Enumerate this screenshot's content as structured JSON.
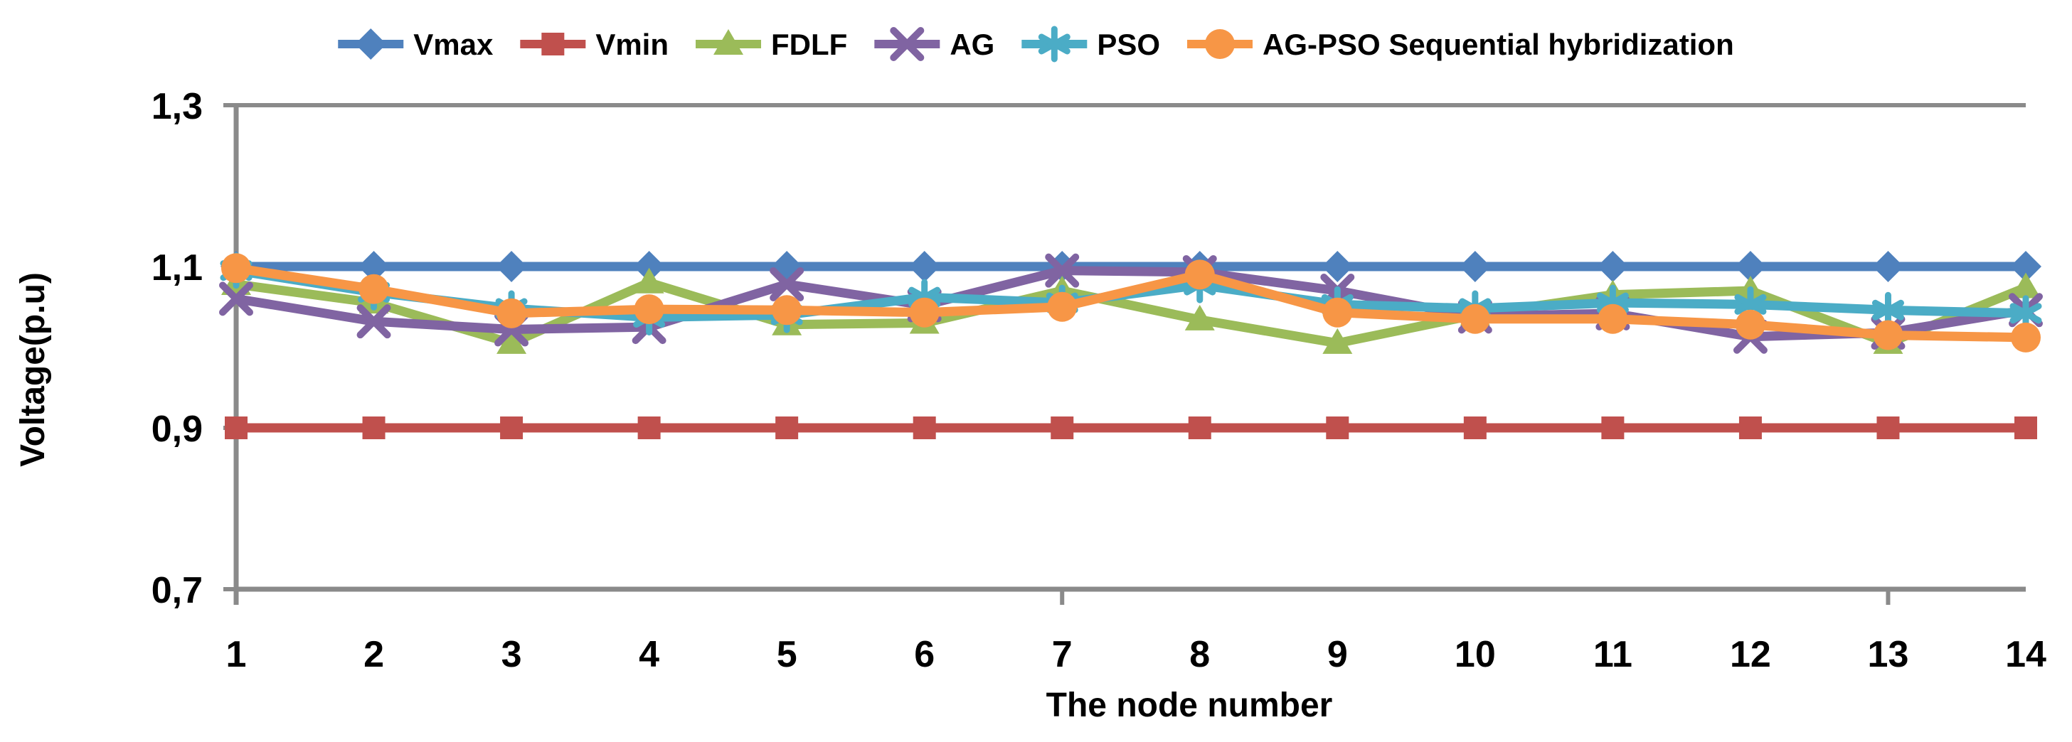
{
  "chart_data": {
    "type": "line",
    "title": "",
    "xlabel": "The node number",
    "ylabel": "Voltage(p.u)",
    "x": [
      1,
      2,
      3,
      4,
      5,
      6,
      7,
      8,
      9,
      10,
      11,
      12,
      13,
      14
    ],
    "x_tick_labels": [
      "1",
      "2",
      "3",
      "4",
      "5",
      "6",
      "7",
      "8",
      "9",
      "10",
      "11",
      "12",
      "13",
      "14"
    ],
    "ylim": [
      0.7,
      1.3
    ],
    "yticks": [
      {
        "value": 0.7,
        "label": "0,7"
      },
      {
        "value": 0.9,
        "label": "0,9"
      },
      {
        "value": 1.1,
        "label": "1,1"
      },
      {
        "value": 1.3,
        "label": "1,3"
      }
    ],
    "x_major_tick_interval": 6,
    "grid": false,
    "legend_position": "top",
    "series": [
      {
        "name": "Vmax",
        "color": "#4F81BD",
        "marker": "diamond",
        "values": [
          1.1,
          1.1,
          1.1,
          1.1,
          1.1,
          1.1,
          1.1,
          1.1,
          1.1,
          1.1,
          1.1,
          1.1,
          1.1,
          1.1
        ]
      },
      {
        "name": "Vmin",
        "color": "#C0504D",
        "marker": "square",
        "values": [
          0.9,
          0.9,
          0.9,
          0.9,
          0.9,
          0.9,
          0.9,
          0.9,
          0.9,
          0.9,
          0.9,
          0.9,
          0.9,
          0.9
        ]
      },
      {
        "name": "FDLF",
        "color": "#9BBB59",
        "marker": "triangle",
        "values": [
          1.078,
          1.055,
          1.005,
          1.08,
          1.028,
          1.03,
          1.07,
          1.034,
          1.005,
          1.04,
          1.065,
          1.07,
          1.005,
          1.074
        ]
      },
      {
        "name": "AG",
        "color": "#8064A2",
        "marker": "x",
        "values": [
          1.06,
          1.032,
          1.022,
          1.025,
          1.078,
          1.052,
          1.095,
          1.093,
          1.07,
          1.038,
          1.042,
          1.013,
          1.018,
          1.046
        ]
      },
      {
        "name": "PSO",
        "color": "#4BACC6",
        "marker": "asterisk",
        "values": [
          1.095,
          1.068,
          1.048,
          1.037,
          1.04,
          1.062,
          1.055,
          1.077,
          1.053,
          1.048,
          1.055,
          1.053,
          1.046,
          1.042
        ]
      },
      {
        "name": "AG-PSO Sequential hybridization",
        "color": "#F79646",
        "marker": "circle",
        "values": [
          1.098,
          1.072,
          1.042,
          1.047,
          1.046,
          1.043,
          1.05,
          1.09,
          1.043,
          1.035,
          1.035,
          1.028,
          1.015,
          1.012
        ]
      }
    ]
  },
  "style": {
    "axis_color": "#8a8a8a",
    "text_color": "#000000",
    "background": "#ffffff"
  }
}
